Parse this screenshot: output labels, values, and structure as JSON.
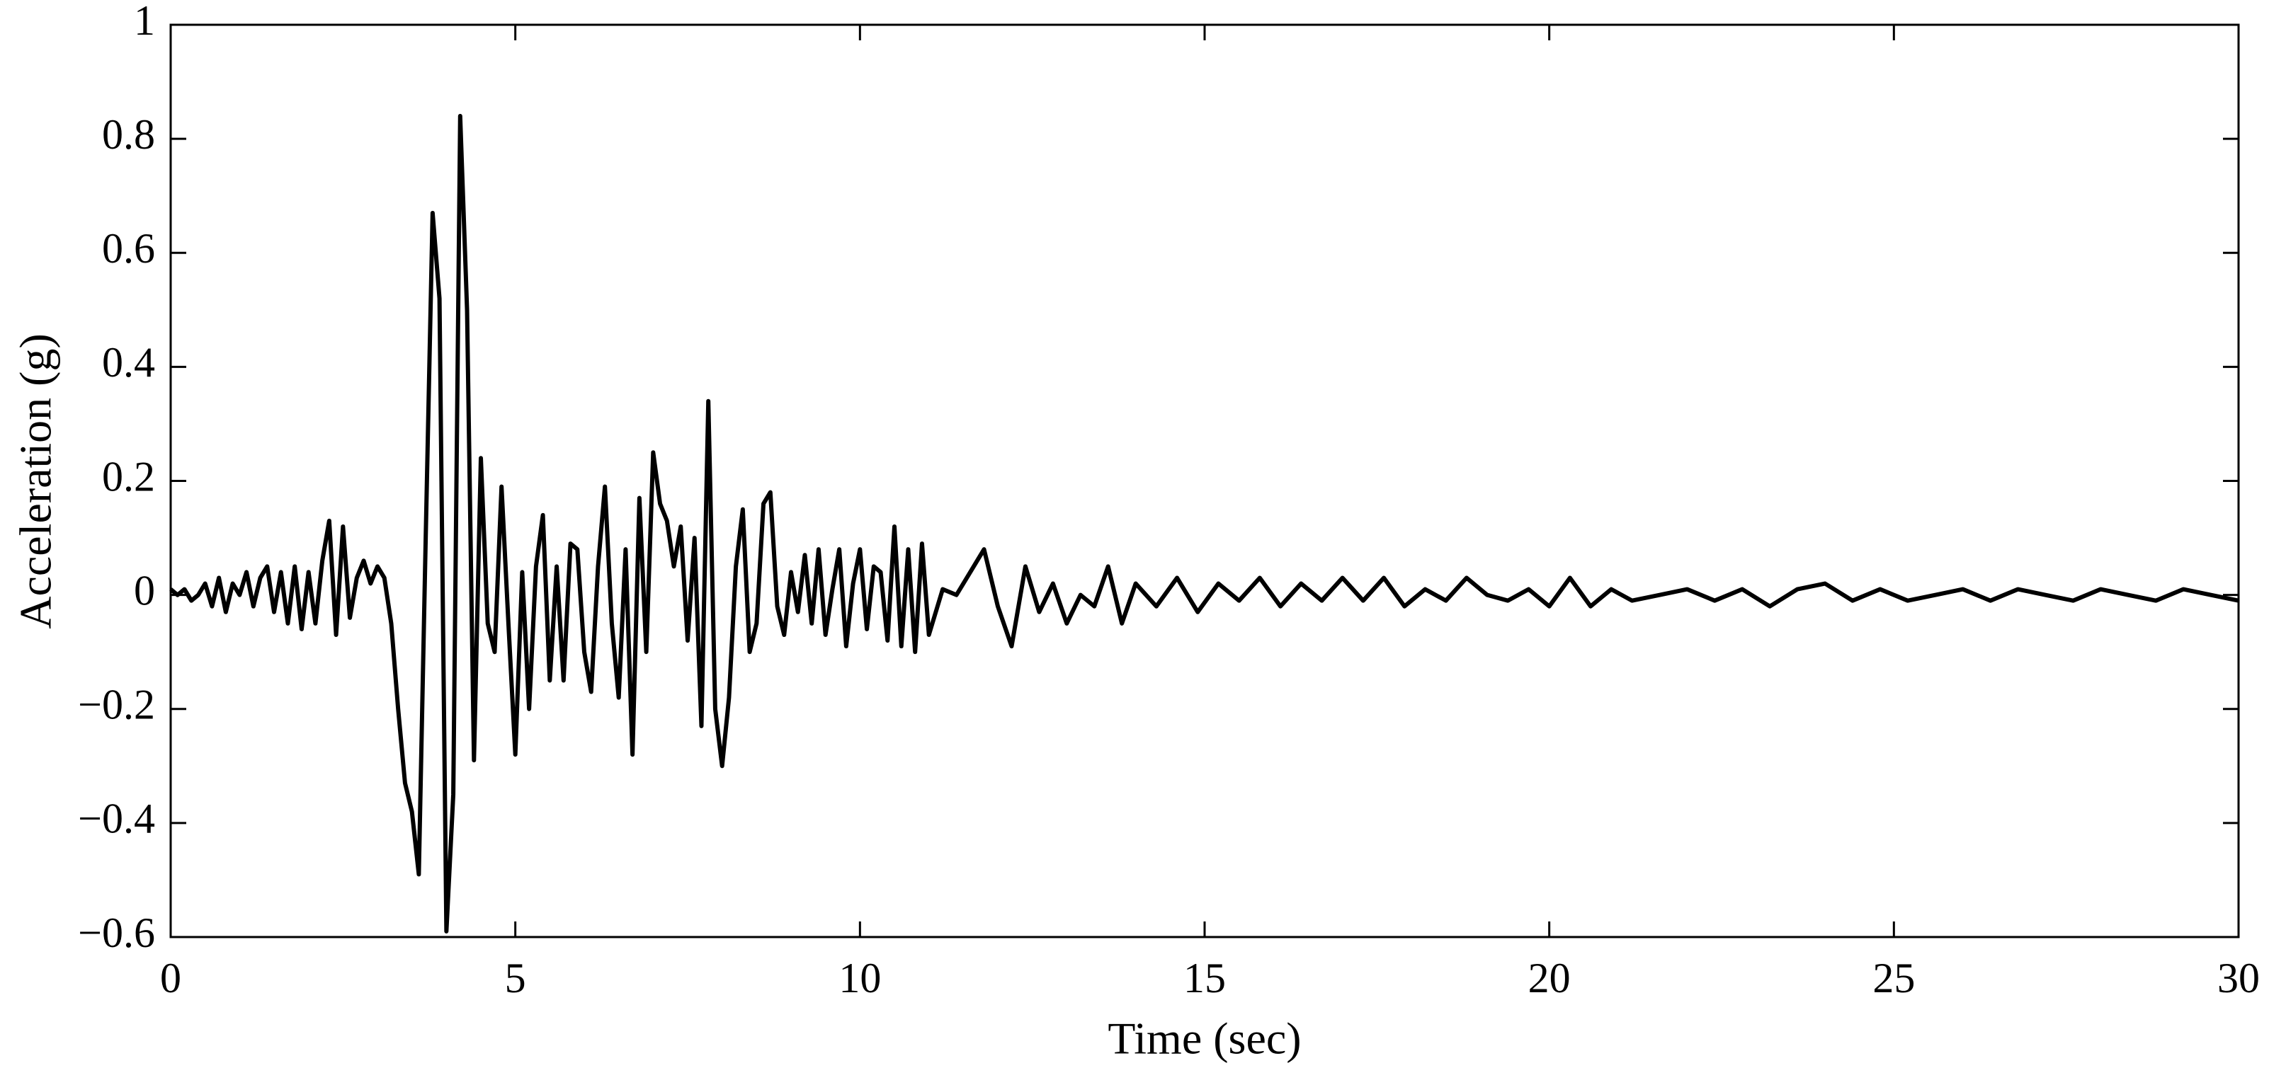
{
  "chart_data": {
    "type": "line",
    "xlabel": "Time (sec)",
    "ylabel": "Acceleration (g)",
    "color": "#000000",
    "xlim": [
      0,
      30
    ],
    "ylim": [
      -0.6,
      1
    ],
    "xticks": [
      0,
      5,
      10,
      15,
      20,
      25,
      30
    ],
    "yticks": [
      {
        "value": -0.6,
        "label": "−0.6"
      },
      {
        "value": -0.4,
        "label": "−0.4"
      },
      {
        "value": -0.2,
        "label": "−0.2"
      },
      0,
      0.2,
      0.4,
      0.6,
      0.8,
      1
    ],
    "x": [
      0,
      0.1,
      0.2,
      0.3,
      0.4,
      0.5,
      0.6,
      0.7,
      0.8,
      0.9,
      1.0,
      1.1,
      1.2,
      1.3,
      1.4,
      1.5,
      1.6,
      1.7,
      1.8,
      1.9,
      2.0,
      2.1,
      2.2,
      2.3,
      2.4,
      2.5,
      2.6,
      2.7,
      2.8,
      2.9,
      3.0,
      3.1,
      3.2,
      3.3,
      3.4,
      3.5,
      3.6,
      3.7,
      3.8,
      3.9,
      4.0,
      4.1,
      4.2,
      4.3,
      4.4,
      4.5,
      4.6,
      4.7,
      4.8,
      4.9,
      5.0,
      5.1,
      5.2,
      5.3,
      5.4,
      5.5,
      5.6,
      5.7,
      5.8,
      5.9,
      6.0,
      6.1,
      6.2,
      6.3,
      6.4,
      6.5,
      6.6,
      6.7,
      6.8,
      6.9,
      7.0,
      7.1,
      7.2,
      7.3,
      7.4,
      7.5,
      7.6,
      7.7,
      7.8,
      7.9,
      8.0,
      8.1,
      8.2,
      8.3,
      8.4,
      8.5,
      8.6,
      8.7,
      8.8,
      8.9,
      9.0,
      9.1,
      9.2,
      9.3,
      9.4,
      9.5,
      9.6,
      9.7,
      9.8,
      9.9,
      10.0,
      10.1,
      10.2,
      10.3,
      10.4,
      10.5,
      10.6,
      10.7,
      10.8,
      10.9,
      11.0,
      11.2,
      11.4,
      11.6,
      11.8,
      12.0,
      12.2,
      12.4,
      12.6,
      12.8,
      13.0,
      13.2,
      13.4,
      13.6,
      13.8,
      14.0,
      14.3,
      14.6,
      14.9,
      15.2,
      15.5,
      15.8,
      16.1,
      16.4,
      16.7,
      17.0,
      17.3,
      17.6,
      17.9,
      18.2,
      18.5,
      18.8,
      19.1,
      19.4,
      19.7,
      20.0,
      20.3,
      20.6,
      20.9,
      21.2,
      21.6,
      22.0,
      22.4,
      22.8,
      23.2,
      23.6,
      24.0,
      24.4,
      24.8,
      25.2,
      25.6,
      26.0,
      26.4,
      26.8,
      27.2,
      27.6,
      28.0,
      28.4,
      28.8,
      29.2,
      29.6,
      30.0
    ],
    "values": [
      0.01,
      0.0,
      0.01,
      -0.01,
      0.0,
      0.02,
      -0.02,
      0.03,
      -0.03,
      0.02,
      0.0,
      0.04,
      -0.02,
      0.03,
      0.05,
      -0.03,
      0.04,
      -0.05,
      0.05,
      -0.06,
      0.04,
      -0.05,
      0.06,
      0.13,
      -0.07,
      0.12,
      -0.04,
      0.03,
      0.06,
      0.02,
      0.05,
      0.03,
      -0.05,
      -0.2,
      -0.33,
      -0.38,
      -0.49,
      0.1,
      0.67,
      0.52,
      -0.59,
      -0.35,
      0.84,
      0.5,
      -0.29,
      0.24,
      -0.05,
      -0.1,
      0.19,
      -0.05,
      -0.28,
      0.04,
      -0.2,
      0.05,
      0.14,
      -0.15,
      0.05,
      -0.15,
      0.09,
      0.08,
      -0.1,
      -0.17,
      0.05,
      0.19,
      -0.05,
      -0.18,
      0.08,
      -0.28,
      0.17,
      -0.1,
      0.25,
      0.16,
      0.13,
      0.05,
      0.12,
      -0.08,
      0.1,
      -0.23,
      0.34,
      -0.2,
      -0.3,
      -0.18,
      0.05,
      0.15,
      -0.1,
      -0.05,
      0.16,
      0.18,
      -0.02,
      -0.07,
      0.04,
      -0.03,
      0.07,
      -0.05,
      0.08,
      -0.07,
      0.01,
      0.08,
      -0.09,
      0.02,
      0.08,
      -0.06,
      0.05,
      0.04,
      -0.08,
      0.12,
      -0.09,
      0.08,
      -0.1,
      0.09,
      -0.07,
      0.01,
      0.0,
      0.04,
      0.08,
      -0.02,
      -0.09,
      0.05,
      -0.03,
      0.02,
      -0.05,
      0.0,
      -0.02,
      0.05,
      -0.05,
      0.02,
      -0.02,
      0.03,
      -0.03,
      0.02,
      -0.01,
      0.03,
      -0.02,
      0.02,
      -0.01,
      0.03,
      -0.01,
      0.03,
      -0.02,
      0.01,
      -0.01,
      0.03,
      0.0,
      -0.01,
      0.01,
      -0.02,
      0.03,
      -0.02,
      0.01,
      -0.01,
      0.0,
      0.01,
      -0.01,
      0.01,
      -0.02,
      0.01,
      0.02,
      -0.01,
      0.01,
      -0.01,
      0.0,
      0.01,
      -0.01,
      0.01,
      0.0,
      -0.01,
      0.01,
      0.0,
      -0.01,
      0.01,
      0.0,
      -0.01
    ]
  }
}
